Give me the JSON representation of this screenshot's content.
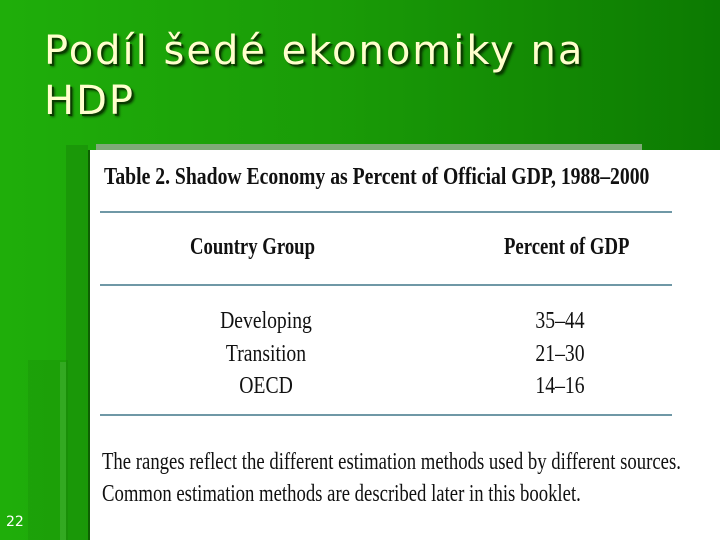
{
  "slide": {
    "title_line1": "Podíl šedé ekonomiky na",
    "title_line2": "HDP",
    "slide_number": "22"
  },
  "scan": {
    "table_title": "Table 2. Shadow Economy as Percent of Official GDP, 1988–2000",
    "headers": {
      "country_group": "Country Group",
      "percent": "Percent of GDP"
    },
    "rows": [
      {
        "group": "Developing",
        "percent": "35–44"
      },
      {
        "group": "Transition",
        "percent": "21–30"
      },
      {
        "group": "OECD",
        "percent": "14–16"
      }
    ],
    "note_line1": "The ranges reflect the different estimation methods used by different sources.",
    "note_line2": "Common estimation methods are described later in this booklet."
  },
  "colors": {
    "background": "#1a9c07",
    "title_text": "#ffffcc",
    "rule": "#6f98a6"
  }
}
